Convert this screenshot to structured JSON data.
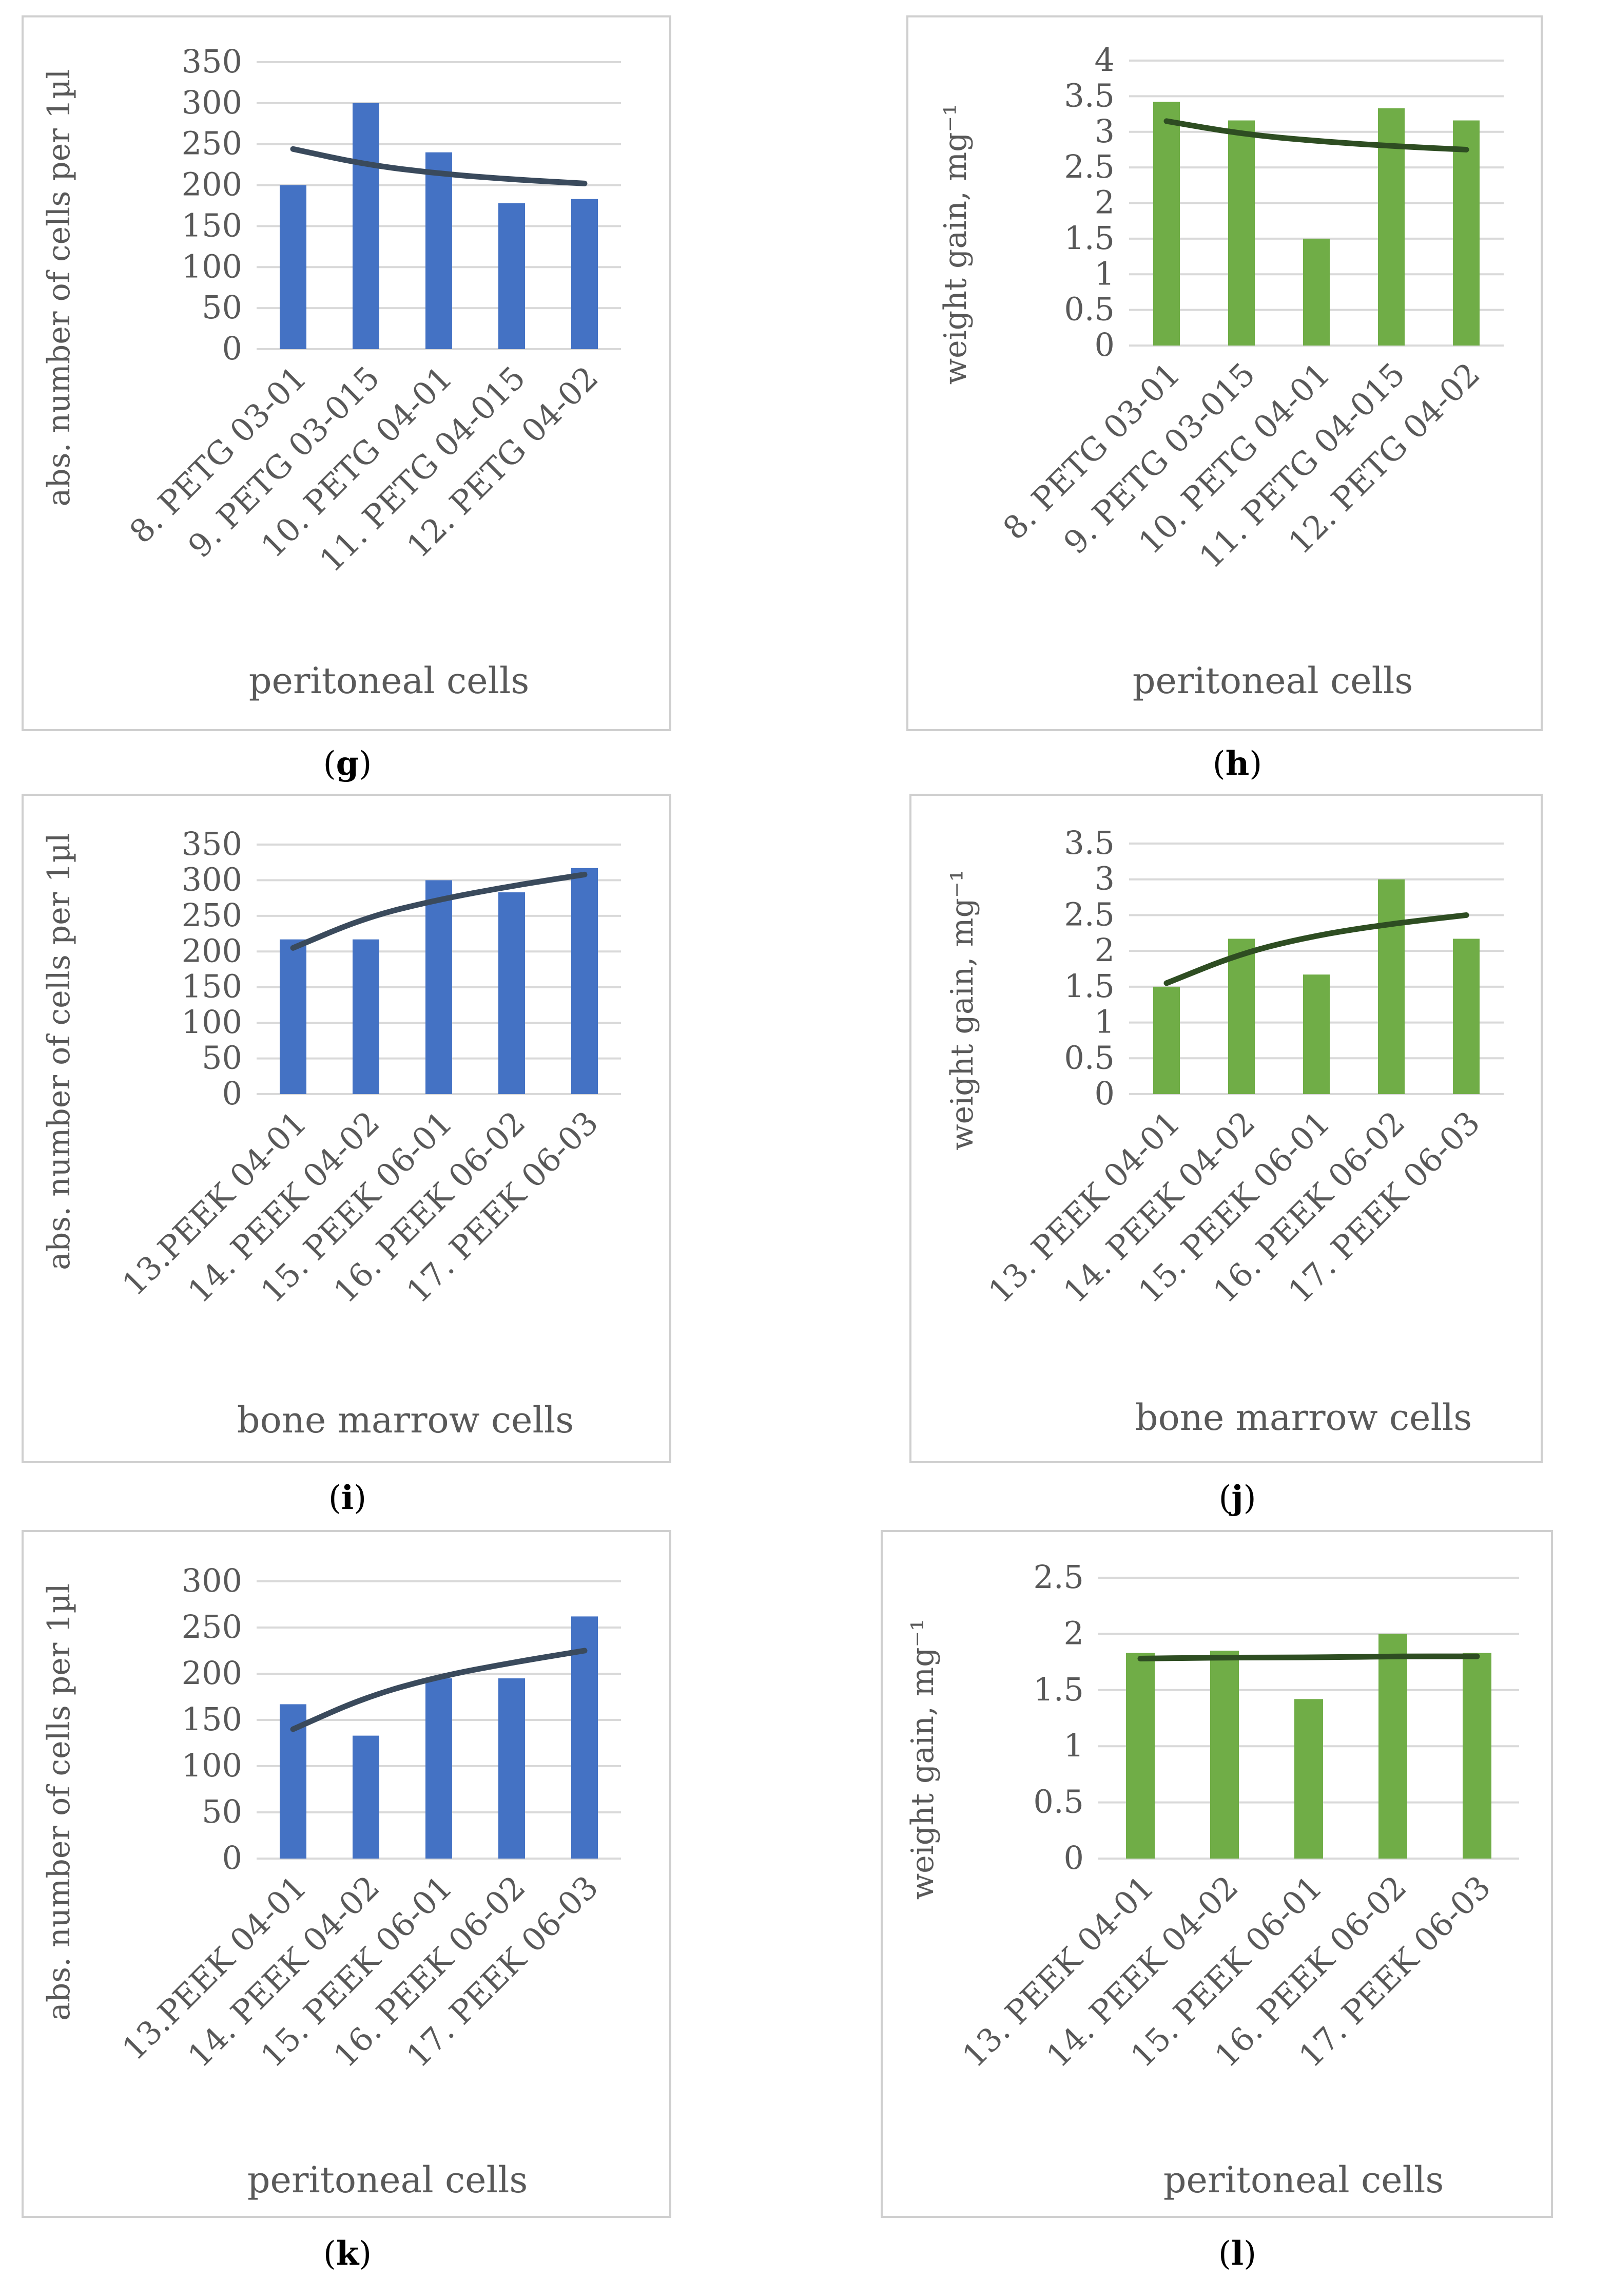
{
  "colors": {
    "blue_bar": "#4472c4",
    "green_bar": "#70ad47",
    "trend_blue": "#3a4a5c",
    "trend_green": "#2e4d22",
    "grid": "#d9d9d9",
    "text": "#595959"
  },
  "chart_data": [
    {
      "id": "g",
      "type": "bar",
      "caption": "g",
      "categories": [
        "8. PETG 03-01",
        "9. PETG 03-015",
        "10. PETG 04-01",
        "11. PETG 04-015",
        "12. PETG 04-02"
      ],
      "values": [
        200,
        300,
        240,
        178,
        183
      ],
      "trendline": [
        244,
        225,
        214,
        207,
        202
      ],
      "ylabel": "abs. number of cells per 1µl",
      "xlabel": "peritoneal cells",
      "ylim": [
        0,
        350
      ],
      "yticks": [
        "0",
        "50",
        "100",
        "150",
        "200",
        "250",
        "300",
        "350"
      ],
      "ystep": 50,
      "color": "blue"
    },
    {
      "id": "h",
      "type": "bar",
      "caption": "h",
      "categories": [
        "8. PETG 03-01",
        "9. PETG 03-015",
        "10. PETG 04-01",
        "11. PETG 04-015",
        "12. PETG 04-02"
      ],
      "values": [
        3.42,
        3.16,
        1.5,
        3.33,
        3.16
      ],
      "trendline": [
        3.15,
        2.97,
        2.87,
        2.8,
        2.75
      ],
      "ylabel": "weight gain, mg⁻¹",
      "xlabel": "peritoneal cells",
      "ylim": [
        0,
        4
      ],
      "yticks": [
        "0",
        "0.5",
        "1",
        "1.5",
        "2",
        "2.5",
        "3",
        "3.5",
        "4"
      ],
      "ystep": 0.5,
      "color": "green"
    },
    {
      "id": "i",
      "type": "bar",
      "caption": "i",
      "categories": [
        "13.PEEK 04-01",
        "14. PEEK 04-02",
        "15. PEEK 06-01",
        "16. PEEK 06-02",
        "17. PEEK 06-03"
      ],
      "values": [
        217,
        217,
        300,
        283,
        317
      ],
      "trendline": [
        205,
        248,
        273,
        292,
        308
      ],
      "ylabel": "abs. number of cells per 1µl",
      "xlabel": "bone marrow cells",
      "ylim": [
        0,
        350
      ],
      "yticks": [
        "0",
        "50",
        "100",
        "150",
        "200",
        "250",
        "300",
        "350"
      ],
      "ystep": 50,
      "color": "blue"
    },
    {
      "id": "j",
      "type": "bar",
      "caption": "j",
      "categories": [
        "13. PEEK 04-01",
        "14. PEEK 04-02",
        "15. PEEK 06-01",
        "16. PEEK 06-02",
        "17. PEEK 06-03"
      ],
      "values": [
        1.5,
        2.17,
        1.67,
        3.0,
        2.17
      ],
      "trendline": [
        1.55,
        1.97,
        2.22,
        2.38,
        2.5
      ],
      "ylabel": "weight gain, mg⁻¹",
      "xlabel": "bone marrow cells",
      "ylim": [
        0,
        3.5
      ],
      "yticks": [
        "0",
        "0.5",
        "1",
        "1.5",
        "2",
        "2.5",
        "3",
        "3.5"
      ],
      "ystep": 0.5,
      "color": "green"
    },
    {
      "id": "k",
      "type": "bar",
      "caption": "k",
      "categories": [
        "13.PEEK 04-01",
        "14. PEEK 04-02",
        "15. PEEK 06-01",
        "16. PEEK 06-02",
        "17. PEEK 06-03"
      ],
      "values": [
        167,
        133,
        195,
        195,
        262
      ],
      "trendline": [
        140,
        175,
        197,
        212,
        225
      ],
      "ylabel": "abs. number of cells per 1µl",
      "xlabel": "peritoneal cells",
      "ylim": [
        0,
        300
      ],
      "yticks": [
        "0",
        "50",
        "100",
        "150",
        "200",
        "250",
        "300"
      ],
      "ystep": 50,
      "color": "blue"
    },
    {
      "id": "l",
      "type": "bar",
      "caption": "l",
      "categories": [
        "13. PEEK 04-01",
        "14. PEEK 04-02",
        "15. PEEK 06-01",
        "16. PEEK 06-02",
        "17. PEEK 06-03"
      ],
      "values": [
        1.83,
        1.85,
        1.42,
        2.0,
        1.83
      ],
      "trendline": [
        1.78,
        1.79,
        1.79,
        1.8,
        1.8
      ],
      "ylabel": "weight gain, mg⁻¹",
      "xlabel": "peritoneal cells",
      "ylim": [
        0,
        2.5
      ],
      "yticks": [
        "0",
        "0.5",
        "1",
        "1.5",
        "2",
        "2.5"
      ],
      "ystep": 0.5,
      "color": "green"
    }
  ]
}
